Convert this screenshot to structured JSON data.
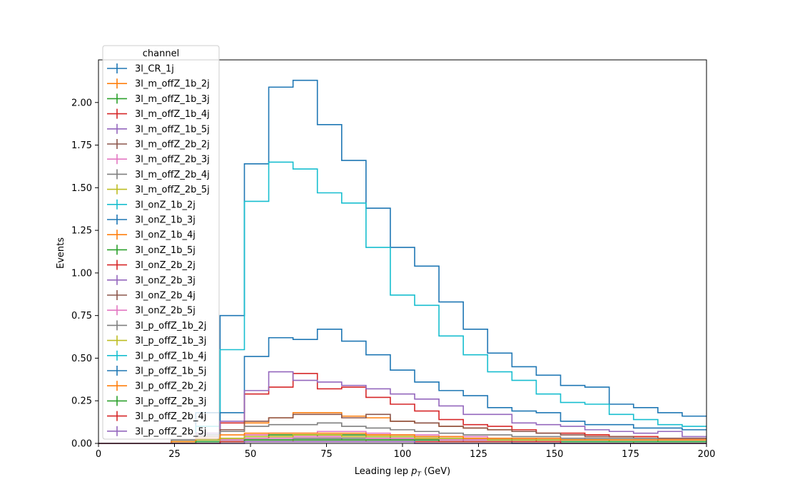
{
  "chart_data": {
    "type": "line",
    "style": "step histogram",
    "xlabel_main": "Leading lep ",
    "xlabel_var": "p",
    "xlabel_sub": "T",
    "xlabel_unit": " (GeV)",
    "ylabel": "Events",
    "xlim": [
      0,
      200
    ],
    "ylim": [
      0,
      2.25
    ],
    "xticks": [
      "0",
      "25",
      "50",
      "75",
      "100",
      "125",
      "150",
      "175",
      "200"
    ],
    "yticks": [
      "0.00",
      "0.25",
      "0.50",
      "0.75",
      "1.00",
      "1.25",
      "1.50",
      "1.75",
      "2.00"
    ],
    "grid": false,
    "legend": {
      "title": "channel",
      "placement": "top-left"
    },
    "bin_edges": [
      0,
      8,
      16,
      24,
      32,
      40,
      48,
      56,
      64,
      72,
      80,
      88,
      96,
      104,
      112,
      120,
      128,
      136,
      144,
      152,
      160,
      168,
      176,
      184,
      192,
      200
    ],
    "series": [
      {
        "name": "3l_CR_1j",
        "color": "#1f77b4",
        "values": [
          0,
          0,
          0,
          0.02,
          0.18,
          0.75,
          1.64,
          2.09,
          2.13,
          1.87,
          1.66,
          1.38,
          1.15,
          1.04,
          0.83,
          0.67,
          0.53,
          0.45,
          0.4,
          0.34,
          0.33,
          0.23,
          0.21,
          0.18,
          0.16
        ]
      },
      {
        "name": "3l_m_offZ_1b_2j",
        "color": "#ff7f0e",
        "values": [
          0,
          0,
          0,
          0.01,
          0.02,
          0.03,
          0.05,
          0.05,
          0.05,
          0.05,
          0.05,
          0.05,
          0.04,
          0.04,
          0.04,
          0.03,
          0.03,
          0.03,
          0.02,
          0.02,
          0.02,
          0.02,
          0.02,
          0.02,
          0.02
        ]
      },
      {
        "name": "3l_m_offZ_1b_3j",
        "color": "#2ca02c",
        "values": [
          0,
          0,
          0,
          0.01,
          0.02,
          0.02,
          0.03,
          0.04,
          0.05,
          0.04,
          0.04,
          0.04,
          0.03,
          0.03,
          0.03,
          0.02,
          0.02,
          0.02,
          0.02,
          0.02,
          0.02,
          0.01,
          0.01,
          0.01,
          0.01
        ]
      },
      {
        "name": "3l_m_offZ_1b_4j",
        "color": "#d62728",
        "values": [
          0,
          0,
          0,
          0.01,
          0.02,
          0.02,
          0.03,
          0.04,
          0.04,
          0.04,
          0.04,
          0.03,
          0.03,
          0.03,
          0.02,
          0.02,
          0.02,
          0.02,
          0.01,
          0.01,
          0.01,
          0.01,
          0.01,
          0.01,
          0.01
        ]
      },
      {
        "name": "3l_m_offZ_1b_5j",
        "color": "#9467bd",
        "values": [
          0,
          0,
          0,
          0.0,
          0.01,
          0.01,
          0.02,
          0.02,
          0.03,
          0.03,
          0.02,
          0.02,
          0.02,
          0.02,
          0.02,
          0.01,
          0.01,
          0.01,
          0.01,
          0.01,
          0.01,
          0.01,
          0.01,
          0.01,
          0.01
        ]
      },
      {
        "name": "3l_m_offZ_2b_2j",
        "color": "#8c564b",
        "values": [
          0,
          0,
          0,
          0.0,
          0.01,
          0.01,
          0.02,
          0.02,
          0.02,
          0.02,
          0.02,
          0.02,
          0.02,
          0.02,
          0.01,
          0.01,
          0.01,
          0.01,
          0.01,
          0.01,
          0.01,
          0.01,
          0.01,
          0.01,
          0.01
        ]
      },
      {
        "name": "3l_m_offZ_2b_3j",
        "color": "#e377c2",
        "values": [
          0,
          0,
          0,
          0.01,
          0.02,
          0.03,
          0.05,
          0.06,
          0.06,
          0.07,
          0.07,
          0.06,
          0.05,
          0.05,
          0.04,
          0.04,
          0.03,
          0.03,
          0.03,
          0.03,
          0.02,
          0.02,
          0.02,
          0.02,
          0.02
        ]
      },
      {
        "name": "3l_m_offZ_2b_4j",
        "color": "#7f7f7f",
        "values": [
          0,
          0,
          0,
          0.0,
          0.01,
          0.01,
          0.02,
          0.02,
          0.03,
          0.03,
          0.03,
          0.03,
          0.02,
          0.02,
          0.02,
          0.02,
          0.02,
          0.01,
          0.01,
          0.01,
          0.01,
          0.01,
          0.01,
          0.01,
          0.01
        ]
      },
      {
        "name": "3l_m_offZ_2b_5j",
        "color": "#bcbd22",
        "values": [
          0,
          0,
          0,
          0.0,
          0.01,
          0.01,
          0.01,
          0.01,
          0.02,
          0.02,
          0.02,
          0.01,
          0.01,
          0.01,
          0.01,
          0.01,
          0.01,
          0.01,
          0.01,
          0.01,
          0.01,
          0.01,
          0.0,
          0.0,
          0.0
        ]
      },
      {
        "name": "3l_onZ_1b_2j",
        "color": "#17becf",
        "values": [
          0,
          0,
          0,
          0.02,
          0.1,
          0.55,
          1.42,
          1.65,
          1.61,
          1.47,
          1.41,
          1.15,
          0.87,
          0.81,
          0.63,
          0.52,
          0.42,
          0.37,
          0.29,
          0.24,
          0.23,
          0.17,
          0.14,
          0.11,
          0.1
        ]
      },
      {
        "name": "3l_onZ_1b_3j",
        "color": "#1f77b4",
        "values": [
          0,
          0,
          0,
          0.01,
          0.05,
          0.18,
          0.51,
          0.62,
          0.61,
          0.67,
          0.6,
          0.52,
          0.43,
          0.36,
          0.31,
          0.28,
          0.21,
          0.19,
          0.18,
          0.13,
          0.11,
          0.11,
          0.09,
          0.09,
          0.08
        ]
      },
      {
        "name": "3l_onZ_1b_4j",
        "color": "#ff7f0e",
        "values": [
          0,
          0,
          0,
          0.01,
          0.03,
          0.07,
          0.12,
          0.15,
          0.18,
          0.18,
          0.16,
          0.15,
          0.13,
          0.12,
          0.1,
          0.09,
          0.08,
          0.07,
          0.06,
          0.06,
          0.05,
          0.04,
          0.04,
          0.03,
          0.03
        ]
      },
      {
        "name": "3l_onZ_1b_5j",
        "color": "#2ca02c",
        "values": [
          0,
          0,
          0,
          0.01,
          0.02,
          0.03,
          0.04,
          0.05,
          0.05,
          0.05,
          0.05,
          0.04,
          0.04,
          0.04,
          0.03,
          0.03,
          0.03,
          0.02,
          0.02,
          0.02,
          0.02,
          0.02,
          0.02,
          0.01,
          0.01
        ]
      },
      {
        "name": "3l_onZ_2b_2j",
        "color": "#d62728",
        "values": [
          0,
          0,
          0,
          0.02,
          0.06,
          0.12,
          0.29,
          0.33,
          0.41,
          0.32,
          0.33,
          0.27,
          0.23,
          0.19,
          0.14,
          0.11,
          0.1,
          0.08,
          0.06,
          0.06,
          0.05,
          0.04,
          0.04,
          0.03,
          0.03
        ]
      },
      {
        "name": "3l_onZ_2b_3j",
        "color": "#9467bd",
        "values": [
          0,
          0,
          0,
          0.02,
          0.06,
          0.13,
          0.31,
          0.42,
          0.37,
          0.36,
          0.34,
          0.32,
          0.29,
          0.26,
          0.22,
          0.17,
          0.17,
          0.12,
          0.11,
          0.1,
          0.08,
          0.07,
          0.06,
          0.07,
          0.04
        ]
      },
      {
        "name": "3l_onZ_2b_4j",
        "color": "#8c564b",
        "values": [
          0,
          0,
          0,
          0.01,
          0.04,
          0.08,
          0.13,
          0.15,
          0.17,
          0.17,
          0.15,
          0.17,
          0.13,
          0.12,
          0.1,
          0.09,
          0.08,
          0.07,
          0.06,
          0.05,
          0.04,
          0.04,
          0.03,
          0.03,
          0.03
        ]
      },
      {
        "name": "3l_onZ_2b_5j",
        "color": "#e377c2",
        "values": [
          0,
          0,
          0,
          0.0,
          0.01,
          0.02,
          0.03,
          0.03,
          0.04,
          0.04,
          0.04,
          0.03,
          0.03,
          0.03,
          0.02,
          0.02,
          0.02,
          0.02,
          0.02,
          0.01,
          0.01,
          0.01,
          0.01,
          0.01,
          0.01
        ]
      },
      {
        "name": "3l_p_offZ_1b_2j",
        "color": "#7f7f7f",
        "values": [
          0,
          0,
          0,
          0.02,
          0.05,
          0.07,
          0.1,
          0.11,
          0.11,
          0.12,
          0.1,
          0.09,
          0.08,
          0.07,
          0.06,
          0.05,
          0.05,
          0.04,
          0.04,
          0.03,
          0.03,
          0.03,
          0.03,
          0.02,
          0.02
        ]
      },
      {
        "name": "3l_p_offZ_1b_3j",
        "color": "#bcbd22",
        "values": [
          0,
          0,
          0,
          0.01,
          0.02,
          0.03,
          0.04,
          0.04,
          0.05,
          0.05,
          0.04,
          0.04,
          0.04,
          0.03,
          0.03,
          0.03,
          0.02,
          0.02,
          0.02,
          0.02,
          0.02,
          0.01,
          0.01,
          0.01,
          0.01
        ]
      },
      {
        "name": "3l_p_offZ_1b_4j",
        "color": "#17becf",
        "values": [
          0,
          0,
          0,
          0.0,
          0.01,
          0.01,
          0.02,
          0.02,
          0.02,
          0.02,
          0.02,
          0.02,
          0.02,
          0.01,
          0.01,
          0.01,
          0.01,
          0.01,
          0.01,
          0.01,
          0.01,
          0.01,
          0.01,
          0.01,
          0.01
        ]
      },
      {
        "name": "3l_p_offZ_1b_5j",
        "color": "#1f77b4",
        "values": [
          0,
          0,
          0,
          0.0,
          0.0,
          0.01,
          0.01,
          0.01,
          0.01,
          0.01,
          0.01,
          0.01,
          0.01,
          0.01,
          0.01,
          0.01,
          0.01,
          0.0,
          0.0,
          0.0,
          0.0,
          0.0,
          0.0,
          0.0,
          0.0
        ]
      },
      {
        "name": "3l_p_offZ_2b_2j",
        "color": "#ff7f0e",
        "values": [
          0,
          0,
          0,
          0.01,
          0.03,
          0.05,
          0.06,
          0.06,
          0.06,
          0.06,
          0.06,
          0.05,
          0.05,
          0.04,
          0.04,
          0.03,
          0.03,
          0.03,
          0.03,
          0.02,
          0.02,
          0.02,
          0.02,
          0.02,
          0.02
        ]
      },
      {
        "name": "3l_p_offZ_2b_3j",
        "color": "#2ca02c",
        "values": [
          0,
          0,
          0,
          0.0,
          0.01,
          0.01,
          0.02,
          0.02,
          0.02,
          0.02,
          0.02,
          0.02,
          0.02,
          0.02,
          0.01,
          0.01,
          0.01,
          0.01,
          0.01,
          0.01,
          0.01,
          0.01,
          0.01,
          0.01,
          0.01
        ]
      },
      {
        "name": "3l_p_offZ_2b_4j",
        "color": "#d62728",
        "values": [
          0,
          0,
          0,
          0.0,
          0.0,
          0.01,
          0.01,
          0.01,
          0.01,
          0.01,
          0.01,
          0.01,
          0.01,
          0.01,
          0.01,
          0.01,
          0.01,
          0.01,
          0.01,
          0.0,
          0.0,
          0.0,
          0.0,
          0.0,
          0.0
        ]
      },
      {
        "name": "3l_p_offZ_2b_5j",
        "color": "#9467bd",
        "values": [
          0,
          0,
          0,
          0.0,
          0.0,
          0.0,
          0.01,
          0.01,
          0.01,
          0.01,
          0.01,
          0.01,
          0.01,
          0.0,
          0.0,
          0.0,
          0.0,
          0.0,
          0.0,
          0.0,
          0.0,
          0.0,
          0.0,
          0.0,
          0.0
        ]
      }
    ]
  }
}
